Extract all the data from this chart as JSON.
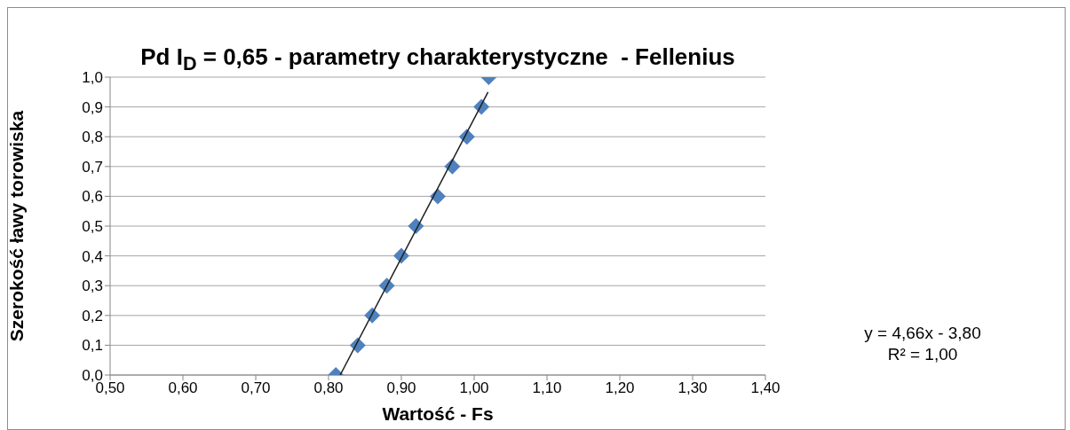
{
  "chart_data": {
    "type": "scatter",
    "title": "Pd I$_{D}$ = 0,65 - parametry charakterystyczne  - Fellenius",
    "xlabel": "Wartość - Fs",
    "ylabel": "Szerokość ławy torowiska",
    "annotations": [
      "y = 4,66x - 3,80",
      "R² = 1,00"
    ],
    "series": [
      {
        "color": "#4f81bd",
        "marker": "diamond",
        "x": [
          0.81,
          0.84,
          0.86,
          0.88,
          0.9,
          0.92,
          0.95,
          0.97,
          0.99,
          1.01,
          1.02
        ],
        "values": [
          0.0,
          0.1,
          0.2,
          0.3,
          0.4,
          0.5,
          0.6,
          0.7,
          0.8,
          0.9,
          1.0
        ]
      },
      {
        "type": "line",
        "color": "#1f1f1f",
        "marker": "none",
        "line_style": "solid",
        "x": [
          0.816,
          1.019
        ],
        "values": [
          0.0,
          0.95
        ]
      }
    ],
    "xlim": [
      0.5,
      1.4
    ],
    "xticks": [
      {
        "value": 0.5,
        "label": "0,50"
      },
      {
        "value": 0.6,
        "label": "0,60"
      },
      {
        "value": 0.7,
        "label": "0,70"
      },
      {
        "value": 0.8,
        "label": "0,80"
      },
      {
        "value": 0.9,
        "label": "0,90"
      },
      {
        "value": 1.0,
        "label": "1,00"
      },
      {
        "value": 1.1,
        "label": "1,10"
      },
      {
        "value": 1.2,
        "label": "1,20"
      },
      {
        "value": 1.3,
        "label": "1,30"
      },
      {
        "value": 1.4,
        "label": "1,40"
      }
    ],
    "ylim": [
      0,
      1
    ],
    "yticks": [
      {
        "value": 0,
        "label": "0,0"
      },
      {
        "value": 0.1,
        "label": "0,1"
      },
      {
        "value": 0.2,
        "label": "0,2"
      },
      {
        "value": 0.3,
        "label": "0,3"
      },
      {
        "value": 0.4,
        "label": "0,4"
      },
      {
        "value": 0.5,
        "label": "0,5"
      },
      {
        "value": 0.6,
        "label": "0,6"
      },
      {
        "value": 0.7,
        "label": "0,7"
      },
      {
        "value": 0.8,
        "label": "0,8"
      },
      {
        "value": 0.9,
        "label": "0,9"
      },
      {
        "value": 1.0,
        "label": "1,0"
      }
    ],
    "grid": "y"
  }
}
